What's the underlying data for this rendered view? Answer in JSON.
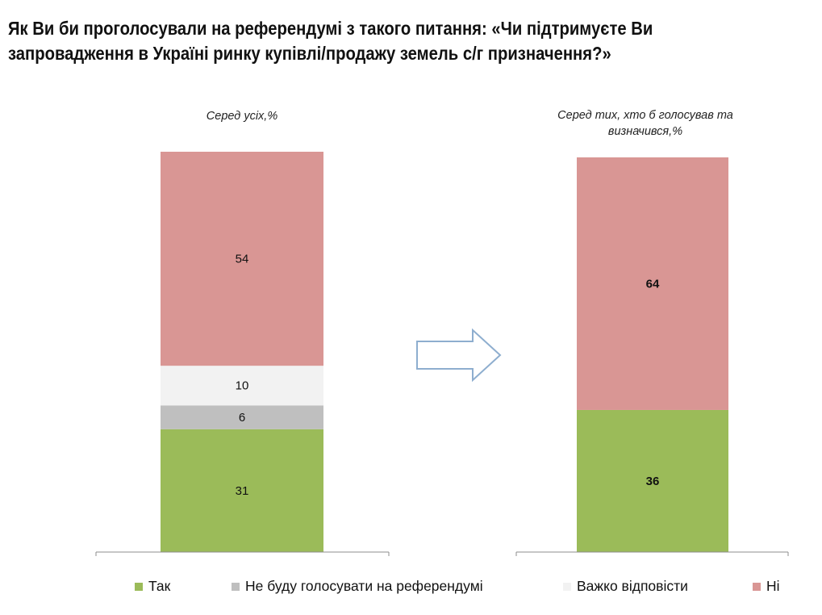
{
  "title_lines": [
    "Як Ви би проголосували на референдумі з такого питання: «Чи підтримуєте Ви",
    "запровадження в Україні ринку купівлі/продажу земель с/г призначення?»"
  ],
  "panels": {
    "left_subtitle": "Серед усіх,%",
    "right_subtitle_line1": "Серед тих, хто б голосував та",
    "right_subtitle_line2": "визначився,%"
  },
  "colors": {
    "yes": "#9bbb59",
    "not_vote": "#bfbfbf",
    "hard_to_say": "#f2f2f2",
    "no": "#d99694",
    "arrow": "#8eaecf"
  },
  "chart_data": [
    {
      "type": "bar",
      "stacked": true,
      "categories": [
        "Серед усіх,%"
      ],
      "ylim": [
        0,
        100
      ],
      "series": [
        {
          "name": "Так",
          "key": "yes",
          "values": [
            31
          ]
        },
        {
          "name": "Не буду голосувати на референдумі",
          "key": "not_vote",
          "values": [
            6
          ]
        },
        {
          "name": "Важко відповісти",
          "key": "hard_to_say",
          "values": [
            10
          ]
        },
        {
          "name": "Ні",
          "key": "no",
          "values": [
            54
          ]
        }
      ],
      "bold_labels": false
    },
    {
      "type": "bar",
      "stacked": true,
      "categories": [
        "Серед тих, хто б голосував та визначився,%"
      ],
      "ylim": [
        0,
        100
      ],
      "series": [
        {
          "name": "Так",
          "key": "yes",
          "values": [
            36
          ]
        },
        {
          "name": "Ні",
          "key": "no",
          "values": [
            64
          ]
        }
      ],
      "bold_labels": true
    }
  ],
  "legend": [
    {
      "label": "Так",
      "key": "yes"
    },
    {
      "label": "Не буду голосувати на референдумі",
      "key": "not_vote"
    },
    {
      "label": "Важко відповісти",
      "key": "hard_to_say"
    },
    {
      "label": "Ні",
      "key": "no"
    }
  ]
}
